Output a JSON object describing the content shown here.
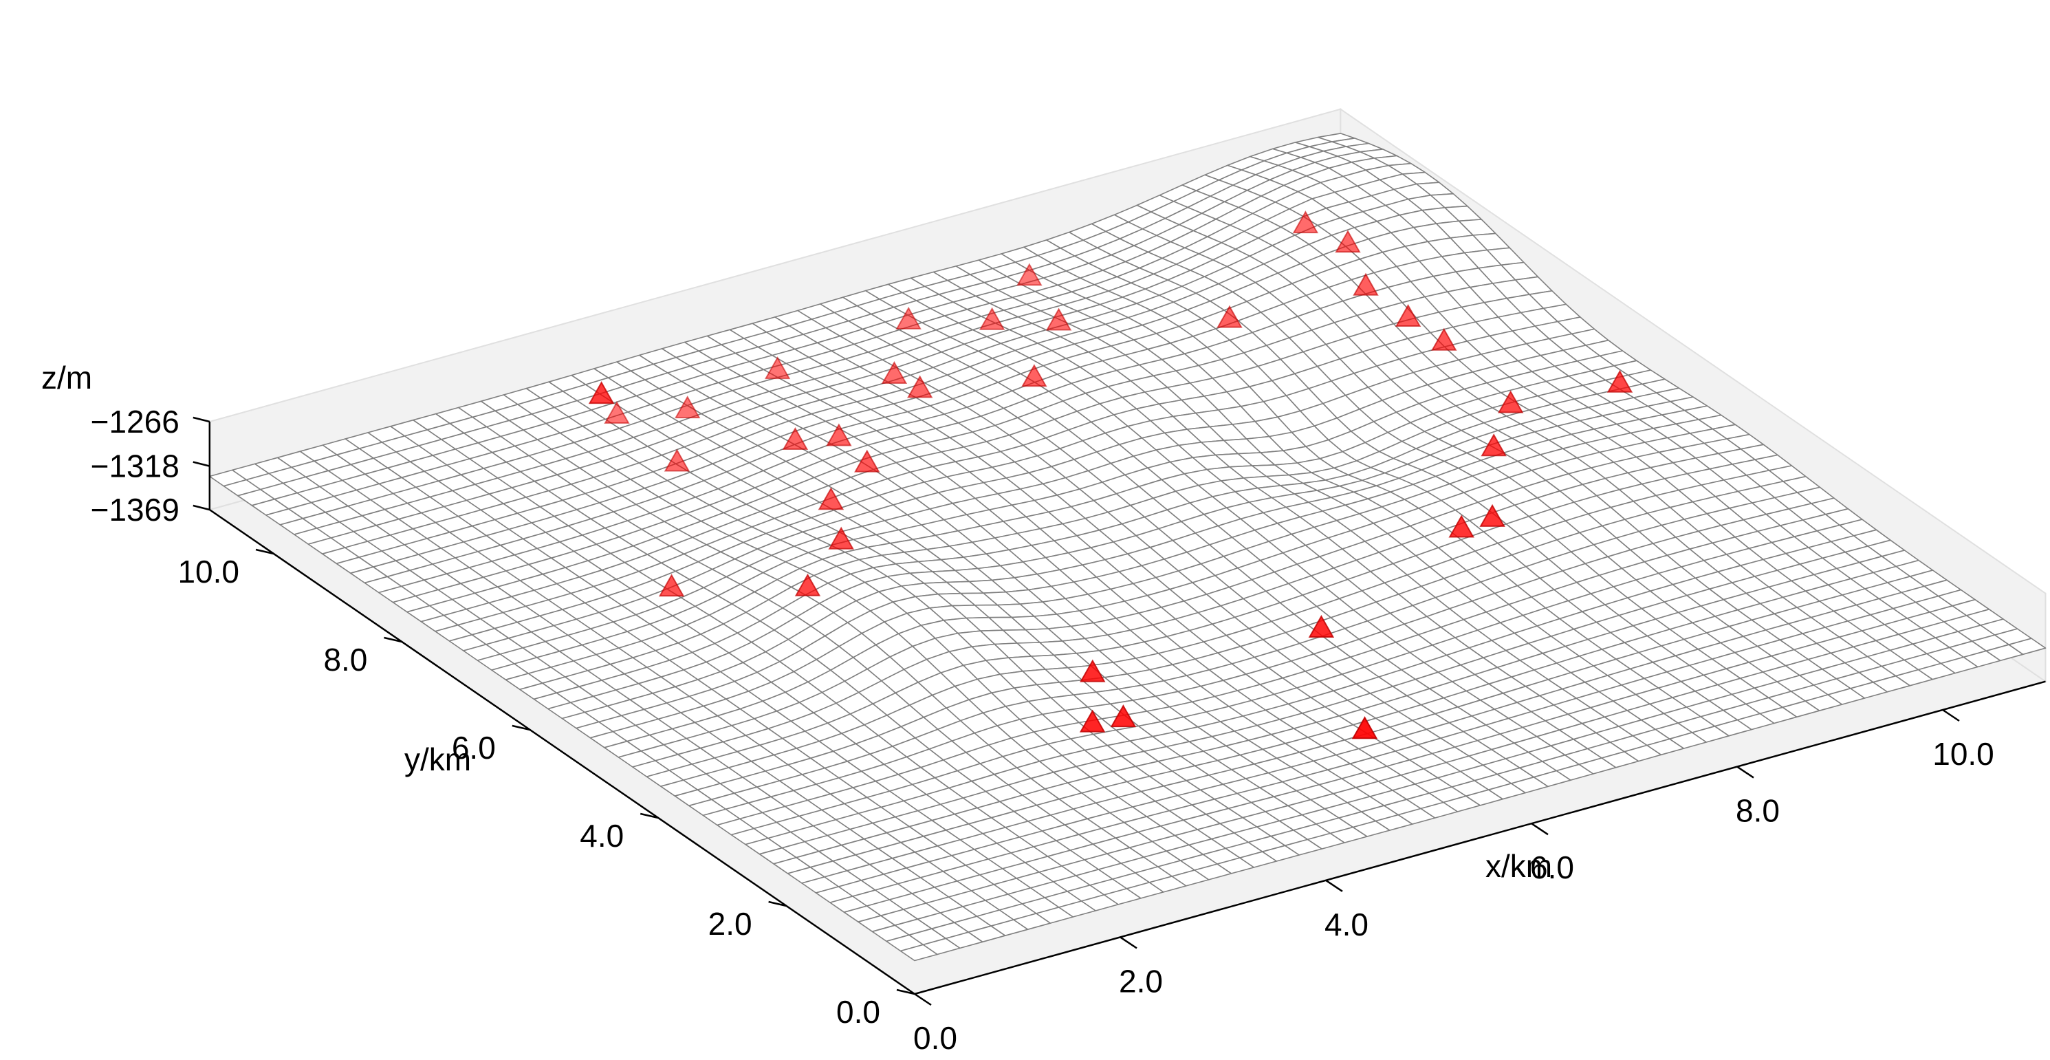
{
  "chart_data": {
    "type": "surface3d",
    "xlabel": "x/km",
    "ylabel": "y/km",
    "zlabel": "z/m",
    "xlim": [
      0,
      11
    ],
    "ylim": [
      0,
      11
    ],
    "zlim": [
      -1369,
      -1266
    ],
    "x_ticks": [
      "0.0",
      "2.0",
      "4.0",
      "6.0",
      "8.0",
      "10.0"
    ],
    "y_ticks": [
      "0.0",
      "2.0",
      "4.0",
      "6.0",
      "8.0",
      "10.0"
    ],
    "z_ticks": [
      "-1266",
      "-1318",
      "-1369"
    ],
    "surface": {
      "grid_size": 50,
      "base_z": -1330,
      "features": [
        {
          "x": 10.5,
          "y": 9.8,
          "amp": 60,
          "sx": 1.1,
          "sy": 1.3
        },
        {
          "x": 8.8,
          "y": 8.5,
          "amp": 35,
          "sx": 1.3,
          "sy": 1.0
        },
        {
          "x": 3.1,
          "y": 5.4,
          "amp": 45,
          "sx": 0.7,
          "sy": 1.4
        },
        {
          "x": 4.6,
          "y": 7.6,
          "amp": 30,
          "sx": 0.8,
          "sy": 1.6
        },
        {
          "x": 6.6,
          "y": 7.8,
          "amp": 28,
          "sx": 0.8,
          "sy": 1.7
        },
        {
          "x": 9.2,
          "y": 4.8,
          "amp": 25,
          "sx": 1.5,
          "sy": 1.2
        },
        {
          "x": 7.9,
          "y": 6.3,
          "amp": -20,
          "sx": 0.6,
          "sy": 0.6
        },
        {
          "x": 5.2,
          "y": 3.0,
          "amp": -12,
          "sx": 1.6,
          "sy": 1.4
        }
      ]
    },
    "stations": [
      {
        "x": 2.0,
        "y": 7.0
      },
      {
        "x": 2.7,
        "y": 6.0
      },
      {
        "x": 4.1,
        "y": 3.8
      },
      {
        "x": 3.9,
        "y": 3.0
      },
      {
        "x": 3.6,
        "y": 3.0
      },
      {
        "x": 5.5,
        "y": 1.8
      },
      {
        "x": 3.4,
        "y": 6.6
      },
      {
        "x": 3.3,
        "y": 9.0
      },
      {
        "x": 3.9,
        "y": 9.8
      },
      {
        "x": 3.4,
        "y": 10.1
      },
      {
        "x": 3.5,
        "y": 10.5
      },
      {
        "x": 3.5,
        "y": 10.5
      },
      {
        "x": 4.2,
        "y": 8.6
      },
      {
        "x": 4.5,
        "y": 8.4
      },
      {
        "x": 4.4,
        "y": 7.8
      },
      {
        "x": 3.8,
        "y": 7.4
      },
      {
        "x": 6.2,
        "y": 3.6
      },
      {
        "x": 6.4,
        "y": 8.4
      },
      {
        "x": 6.8,
        "y": 9.7
      },
      {
        "x": 7.2,
        "y": 9.3
      },
      {
        "x": 7.6,
        "y": 10.4
      },
      {
        "x": 5.6,
        "y": 8.9
      },
      {
        "x": 6.3,
        "y": 10.2
      },
      {
        "x": 4.9,
        "y": 10.0
      },
      {
        "x": 5.6,
        "y": 9.3
      },
      {
        "x": 8.0,
        "y": 4.3
      },
      {
        "x": 8.3,
        "y": 4.3
      },
      {
        "x": 9.0,
        "y": 5.4
      },
      {
        "x": 9.6,
        "y": 6.1
      },
      {
        "x": 10.6,
        "y": 6.0
      },
      {
        "x": 8.3,
        "y": 8.4
      },
      {
        "x": 9.6,
        "y": 9.3
      },
      {
        "x": 9.7,
        "y": 8.8
      },
      {
        "x": 9.5,
        "y": 8.2
      },
      {
        "x": 9.6,
        "y": 7.7
      },
      {
        "x": 9.7,
        "y": 7.3
      }
    ],
    "surface_color": "#808080",
    "station_color": "#ff0000",
    "pane_color": "#f2f2f2"
  }
}
